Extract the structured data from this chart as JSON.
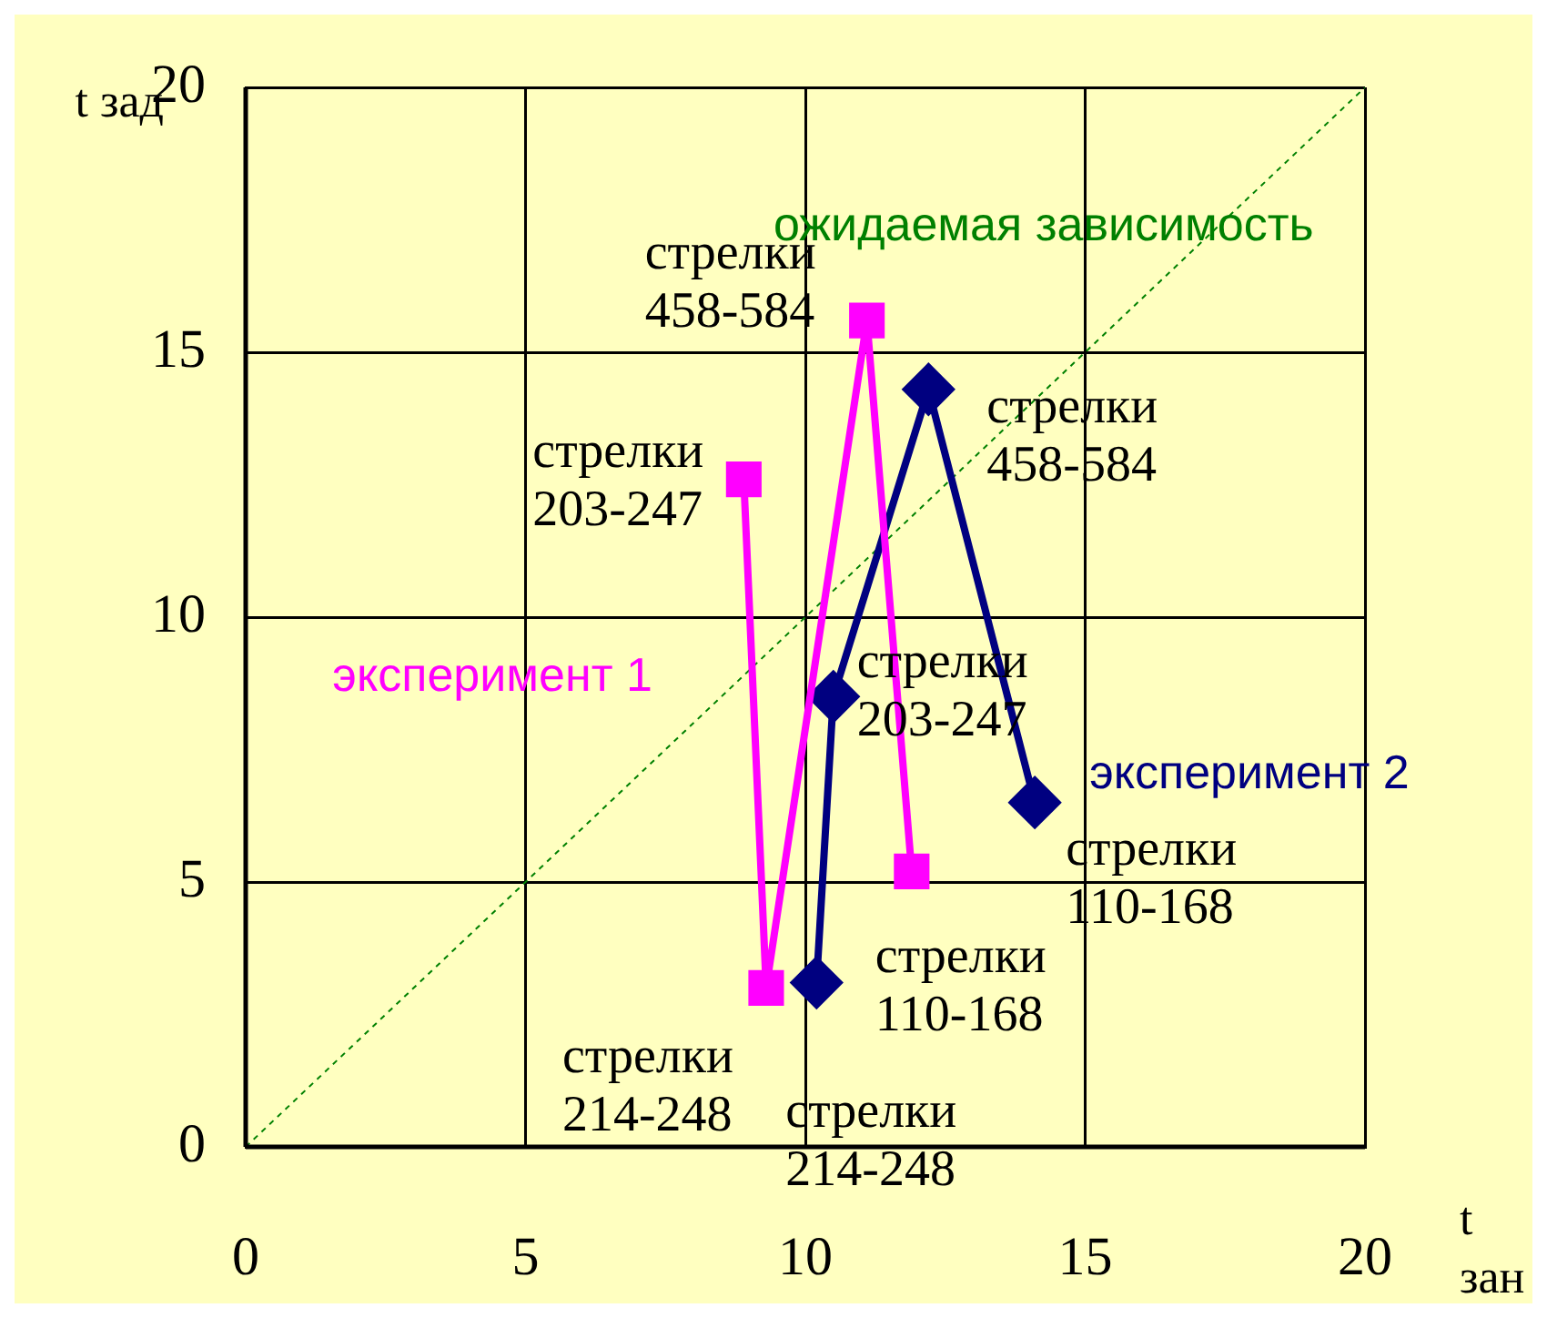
{
  "chart_data": {
    "type": "line",
    "xlabel": "t зан",
    "ylabel": "t зад",
    "xlim": [
      0,
      20
    ],
    "ylim": [
      0,
      20
    ],
    "xticks": [
      0,
      5,
      10,
      15,
      20
    ],
    "yticks": [
      0,
      5,
      10,
      15,
      20
    ],
    "grid": true,
    "legend": false,
    "series": [
      {
        "name": "эксперимент 1",
        "color": "#ff00ff",
        "marker": "square",
        "x": [
          8.9,
          9.3,
          11.1,
          11.9
        ],
        "values": [
          12.6,
          3.0,
          15.6,
          5.2
        ]
      },
      {
        "name": "эксперимент 2",
        "color": "#000080",
        "marker": "diamond",
        "x": [
          10.2,
          10.5,
          12.2,
          14.1
        ],
        "values": [
          3.1,
          8.5,
          14.3,
          6.5
        ]
      },
      {
        "name": "ожидаемая зависимость",
        "color": "#008000",
        "marker": "none",
        "line_style": "dashed",
        "x": [
          0,
          20
        ],
        "values": [
          0,
          20
        ]
      }
    ],
    "annotations": [
      {
        "text": "стрелки 203-247",
        "x": 8.9,
        "y": 12.6
      },
      {
        "text": "стрелки 458-584",
        "x": 11.1,
        "y": 15.6
      },
      {
        "text": "стрелки 214-248",
        "x": 9.3,
        "y": 3.0
      },
      {
        "text": "стрелки 110-168",
        "x": 11.9,
        "y": 5.2
      },
      {
        "text": "стрелки 214-248",
        "x": 10.2,
        "y": 3.1
      },
      {
        "text": "стрелки 203-247",
        "x": 10.5,
        "y": 8.5
      },
      {
        "text": "стрелки 458-584",
        "x": 12.2,
        "y": 14.3
      },
      {
        "text": "стрелки 110-168",
        "x": 14.1,
        "y": 6.5
      }
    ]
  }
}
